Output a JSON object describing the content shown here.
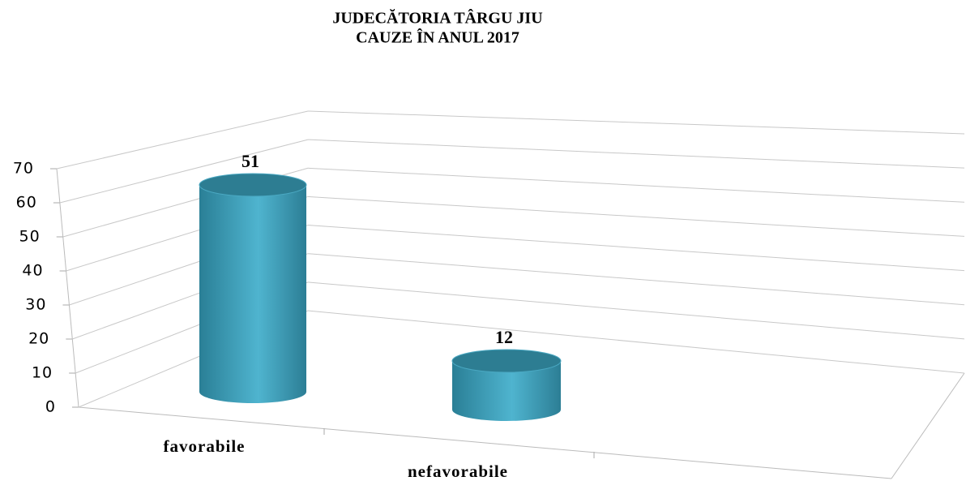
{
  "chart_data": {
    "type": "bar",
    "title": [
      "JUDECĂTORIA TÂRGU JIU",
      "CAUZE ÎN ANUL 2017"
    ],
    "categories": [
      "favorabile",
      "nefavorabile"
    ],
    "values": [
      51,
      12
    ],
    "color": "#3a9ab5",
    "ylim": [
      0,
      70
    ],
    "yticks": [
      0,
      10,
      20,
      30,
      40,
      50,
      60,
      70
    ],
    "grid": true
  }
}
